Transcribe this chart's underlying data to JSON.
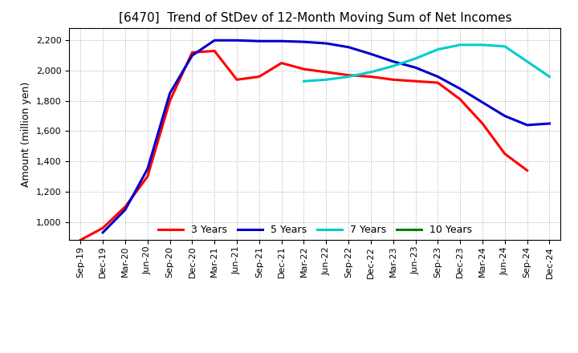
{
  "title": "[6470]  Trend of StDev of 12-Month Moving Sum of Net Incomes",
  "ylabel": "Amount (million yen)",
  "ylim": [
    880,
    2280
  ],
  "yticks": [
    1000,
    1200,
    1400,
    1600,
    1800,
    2000,
    2200
  ],
  "background_color": "#ffffff",
  "grid_color": "#aaaaaa",
  "legend_labels": [
    "3 Years",
    "5 Years",
    "7 Years",
    "10 Years"
  ],
  "legend_colors": [
    "#ff0000",
    "#0000cc",
    "#00cccc",
    "#008000"
  ],
  "x_labels": [
    "Sep-19",
    "Dec-19",
    "Mar-20",
    "Jun-20",
    "Sep-20",
    "Dec-20",
    "Mar-21",
    "Jun-21",
    "Sep-21",
    "Dec-21",
    "Mar-22",
    "Jun-22",
    "Sep-22",
    "Dec-22",
    "Mar-23",
    "Jun-23",
    "Sep-23",
    "Dec-23",
    "Mar-24",
    "Jun-24",
    "Sep-24",
    "Dec-24"
  ],
  "y3": [
    880,
    960,
    1100,
    1300,
    1800,
    2120,
    2130,
    1940,
    1960,
    2050,
    2010,
    1990,
    1970,
    1960,
    1940,
    1930,
    1920,
    1810,
    1650,
    1450,
    1340,
    null
  ],
  "y5": [
    null,
    930,
    1080,
    1350,
    1850,
    2100,
    2200,
    2200,
    2195,
    2195,
    2190,
    2180,
    2155,
    2110,
    2060,
    2020,
    1960,
    1880,
    1790,
    1700,
    1640,
    1650
  ],
  "y7": [
    null,
    null,
    null,
    null,
    null,
    null,
    null,
    null,
    null,
    null,
    1930,
    1940,
    1960,
    1990,
    2030,
    2080,
    2140,
    2170,
    2170,
    2160,
    2060,
    1960
  ],
  "y10": [
    null,
    null,
    null,
    null,
    null,
    null,
    null,
    null,
    null,
    null,
    null,
    null,
    null,
    null,
    null,
    null,
    null,
    null,
    null,
    null,
    null,
    null
  ]
}
